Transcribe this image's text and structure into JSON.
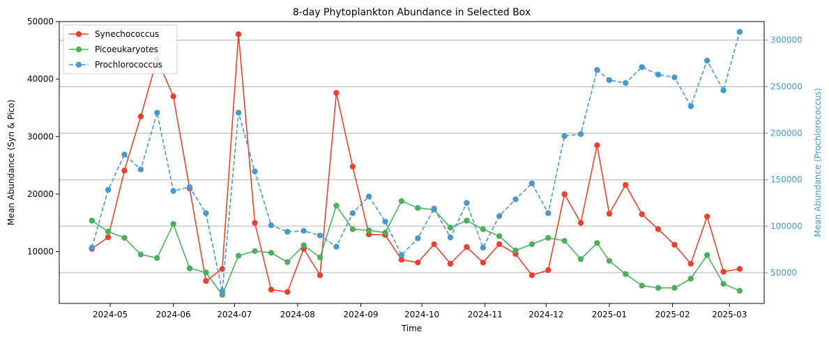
{
  "chart_data": {
    "type": "line",
    "title": "8-day Phytoplankton Abundance in Selected Box",
    "xlabel": "Time",
    "ylabel_left": "Mean Abundance (Syn & Pico)",
    "ylabel_right": "Mean Abundance (Prochlorococcus)",
    "x_ticks": [
      "2024-05",
      "2024-06",
      "2024-07",
      "2024-08",
      "2024-09",
      "2024-10",
      "2024-11",
      "2024-12",
      "2025-01",
      "2025-02",
      "2025-03"
    ],
    "y_left_ticks": [
      10000,
      20000,
      30000,
      40000,
      50000
    ],
    "y_right_ticks": [
      50000,
      100000,
      150000,
      200000,
      250000,
      300000
    ],
    "y_left_lim": [
      1000,
      50000
    ],
    "y_right_lim": [
      17000,
      320000
    ],
    "x_range": [
      "2024-04-06",
      "2025-03-18"
    ],
    "grid": "horizontal lines at right-axis ticks",
    "legend_position": "top-left",
    "colors": {
      "Synechococcus": "#e8412c",
      "Picoeukaryotes": "#4caf5c",
      "Prochlorococcus": "#4898cb",
      "right_axis": "#4898cb",
      "grid": "#b0b0b0"
    },
    "x": [
      "2024-04-22",
      "2024-04-30",
      "2024-05-08",
      "2024-05-16",
      "2024-05-24",
      "2024-06-01",
      "2024-06-09",
      "2024-06-17",
      "2024-06-25",
      "2024-07-03",
      "2024-07-11",
      "2024-07-19",
      "2024-07-27",
      "2024-08-04",
      "2024-08-12",
      "2024-08-20",
      "2024-08-28",
      "2024-09-05",
      "2024-09-13",
      "2024-09-21",
      "2024-09-29",
      "2024-10-07",
      "2024-10-15",
      "2024-10-23",
      "2024-10-31",
      "2024-11-08",
      "2024-11-16",
      "2024-11-24",
      "2024-12-02",
      "2024-12-10",
      "2024-12-18",
      "2024-12-26",
      "2025-01-01",
      "2025-01-09",
      "2025-01-17",
      "2025-01-25",
      "2025-02-02",
      "2025-02-10",
      "2025-02-18",
      "2025-02-26",
      "2025-03-06"
    ],
    "series": [
      {
        "name": "Synechococcus",
        "axis": "left",
        "style": "solid",
        "values": [
          10500,
          12500,
          24100,
          33500,
          43500,
          37000,
          21000,
          4900,
          7000,
          47800,
          15000,
          3400,
          3000,
          10500,
          5900,
          37600,
          24800,
          13000,
          12900,
          8600,
          8100,
          11300,
          7900,
          10800,
          8100,
          11300,
          9600,
          5900,
          6800,
          20000,
          15000,
          28500,
          16600,
          21600,
          16500,
          13900,
          11200,
          7900,
          16100,
          6500,
          7000
        ]
      },
      {
        "name": "Picoeukaryotes",
        "axis": "left",
        "style": "solid",
        "values": [
          15400,
          13500,
          12400,
          9500,
          8900,
          14800,
          7100,
          6400,
          2500,
          9300,
          10100,
          9800,
          8200,
          11100,
          9000,
          18000,
          13900,
          13700,
          13300,
          18800,
          17600,
          17300,
          14200,
          15400,
          13900,
          12700,
          10200,
          11300,
          12400,
          11900,
          8700,
          11500,
          8400,
          6100,
          4100,
          3700,
          3700,
          5300,
          9400,
          4400,
          3200
        ]
      },
      {
        "name": "Prochlorococcus",
        "axis": "right",
        "style": "dashed",
        "values": [
          77000,
          139000,
          177000,
          161000,
          222000,
          138000,
          142000,
          114000,
          30000,
          222000,
          159000,
          101000,
          94000,
          95000,
          90000,
          78000,
          114000,
          132000,
          105000,
          69000,
          87000,
          119000,
          88000,
          125000,
          77000,
          111000,
          129000,
          146000,
          114000,
          197000,
          199000,
          268000,
          257000,
          254000,
          271000,
          263000,
          260000,
          229000,
          278000,
          246000,
          309000
        ]
      }
    ]
  }
}
